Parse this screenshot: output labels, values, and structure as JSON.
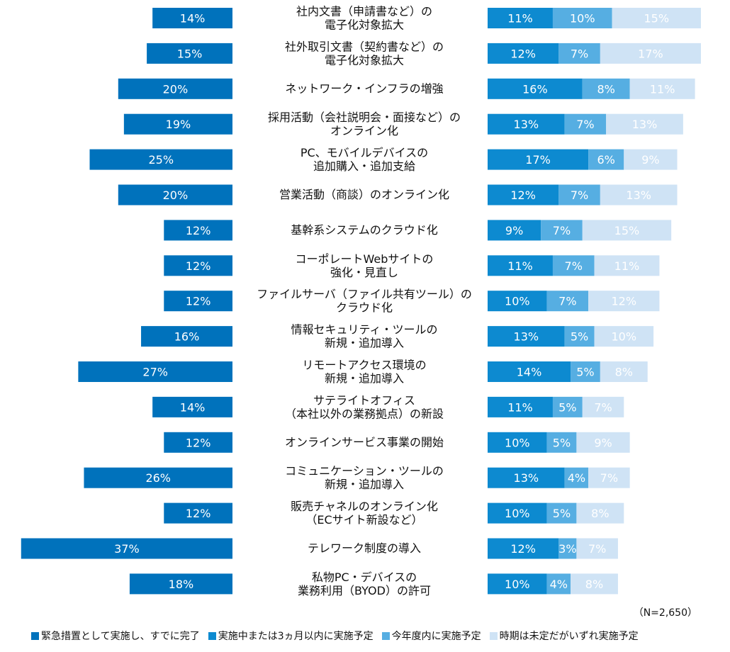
{
  "chart_data": {
    "type": "bar",
    "orientation": "horizontal",
    "layout": "butterfly",
    "unit": "%",
    "categories": [
      [
        "社内文書（申請書など）の",
        "電子化対象拡大"
      ],
      [
        "社外取引文書（契約書など）の",
        "電子化対象拡大"
      ],
      [
        "ネットワーク・インフラの増強"
      ],
      [
        "採用活動（会社説明会・面接など）の",
        "オンライン化"
      ],
      [
        "PC、モバイルデバイスの",
        "追加購入・追加支給"
      ],
      [
        "営業活動（商談）のオンライン化"
      ],
      [
        "基幹系システムのクラウド化"
      ],
      [
        "コーポレートWebサイトの",
        "強化・見直し"
      ],
      [
        "ファイルサーバ（ファイル共有ツール）の",
        "クラウド化"
      ],
      [
        "情報セキュリティ・ツールの",
        "新規・追加導入"
      ],
      [
        "リモートアクセス環境の",
        "新規・追加導入"
      ],
      [
        "サテライトオフィス",
        "（本社以外の業務拠点）の新設"
      ],
      [
        "オンラインサービス事業の開始"
      ],
      [
        "コミュニケーション・ツールの",
        "新規・追加導入"
      ],
      [
        "販売チャネルのオンライン化",
        "（ECサイト新設など）"
      ],
      [
        "テレワーク制度の導入"
      ],
      [
        "私物PC・デバイスの",
        "業務利用（BYOD）の許可"
      ]
    ],
    "series": [
      {
        "name": "緊急措置として実施し、すでに完了",
        "side": "left",
        "color": "#0072bc",
        "values": [
          14,
          15,
          20,
          19,
          25,
          20,
          12,
          12,
          12,
          16,
          27,
          14,
          12,
          26,
          12,
          37,
          18
        ]
      },
      {
        "name": "実施中または3ヵ月以内に実施予定",
        "side": "right",
        "color": "#0d8ad0",
        "values": [
          11,
          12,
          16,
          13,
          17,
          12,
          9,
          11,
          10,
          13,
          14,
          11,
          10,
          13,
          10,
          12,
          10
        ]
      },
      {
        "name": "今年度内に実施予定",
        "side": "right",
        "color": "#56aee2",
        "values": [
          10,
          7,
          8,
          7,
          6,
          7,
          7,
          7,
          7,
          5,
          5,
          5,
          5,
          4,
          5,
          3,
          4
        ]
      },
      {
        "name": "時期は未定だがいずれ実施予定",
        "side": "right",
        "color": "#cfe3f5",
        "values": [
          15,
          17,
          11,
          13,
          9,
          13,
          15,
          11,
          12,
          10,
          8,
          7,
          9,
          7,
          8,
          7,
          8
        ]
      }
    ],
    "note": "（N=2,650）"
  }
}
